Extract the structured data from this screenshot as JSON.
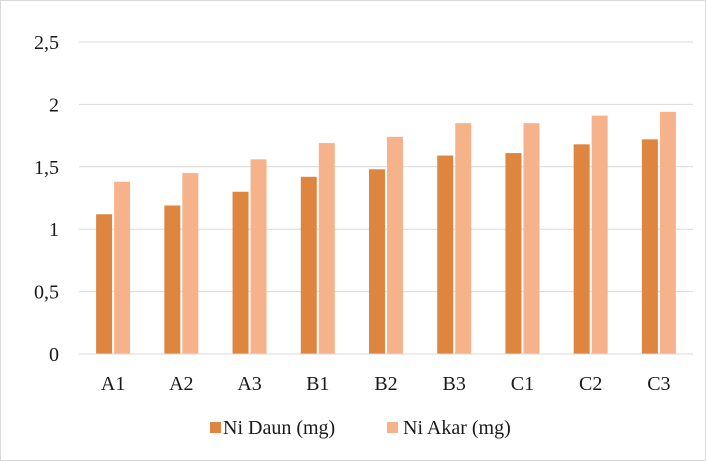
{
  "chart_data": {
    "type": "bar",
    "title": "",
    "xlabel": "",
    "ylabel": "",
    "categories": [
      "A1",
      "A2",
      "A3",
      "B1",
      "B2",
      "B3",
      "C1",
      "C2",
      "C3"
    ],
    "series": [
      {
        "name": "Ni Daun (mg)",
        "color": "#de853f",
        "values": [
          1.12,
          1.19,
          1.3,
          1.42,
          1.48,
          1.59,
          1.61,
          1.68,
          1.72
        ]
      },
      {
        "name": "Ni Akar (mg)",
        "color": "#f6b38b",
        "values": [
          1.38,
          1.45,
          1.56,
          1.69,
          1.74,
          1.85,
          1.85,
          1.91,
          1.94
        ]
      }
    ],
    "ylim": [
      0,
      2.5
    ],
    "yticks": [
      "0",
      "0,5",
      "1",
      "1,5",
      "2",
      "2,5"
    ],
    "grid": true,
    "legend_position": "bottom"
  }
}
